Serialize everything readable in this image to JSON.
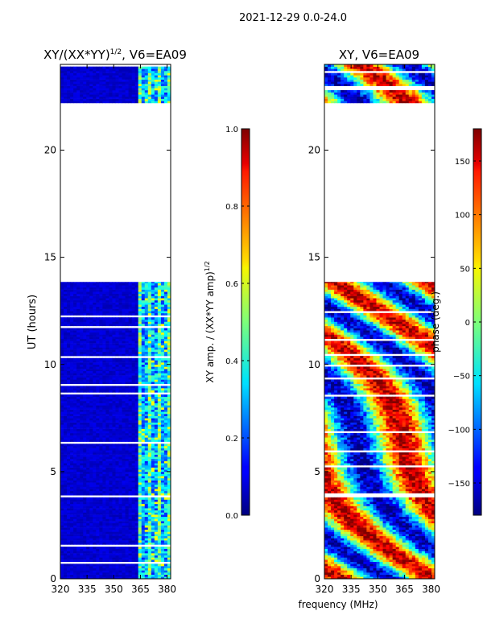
{
  "suptitle": "2021-12-29 0.0-24.0",
  "chart_data": [
    {
      "type": "heatmap",
      "title_main": "XY/(XX*YY)",
      "title_sup": "1/2",
      "title_suffix": ", V6=EA09",
      "xlabel": "",
      "ylabel": "UT (hours)",
      "xlim": [
        320,
        382
      ],
      "ylim": [
        0,
        24
      ],
      "xticks": [
        320,
        335,
        350,
        365,
        380
      ],
      "yticks": [
        0,
        5,
        10,
        15,
        20
      ],
      "data_time_ranges": [
        [
          0,
          13.85
        ],
        [
          22.2,
          24
        ]
      ],
      "colorbar": {
        "label_main": "XY amp. / (XX*YY amp)",
        "label_sup": "1/2",
        "range": [
          0.0,
          1.0
        ],
        "ticks": [
          0.0,
          0.2,
          0.4,
          0.6,
          0.8,
          1.0
        ],
        "tick_labels": [
          "0.0",
          "0.2",
          "0.4",
          "0.6",
          "0.8",
          "1.0"
        ]
      }
    },
    {
      "type": "heatmap",
      "title": "XY, V6=EA09",
      "xlabel": "frequency (MHz)",
      "ylabel": "",
      "xlim": [
        320,
        382
      ],
      "ylim": [
        0,
        24
      ],
      "xticks": [
        320,
        335,
        350,
        365,
        380
      ],
      "yticks": [
        0,
        5,
        10,
        15,
        20
      ],
      "data_time_ranges": [
        [
          0,
          13.85
        ],
        [
          22.2,
          24
        ]
      ],
      "colorbar": {
        "label": "phase (deg.)",
        "range": [
          -180,
          180
        ],
        "ticks": [
          -150,
          -100,
          -50,
          0,
          50,
          100,
          150
        ],
        "tick_labels": [
          "−150",
          "−100",
          "−50",
          "0",
          "50",
          "100",
          "150"
        ]
      }
    }
  ]
}
